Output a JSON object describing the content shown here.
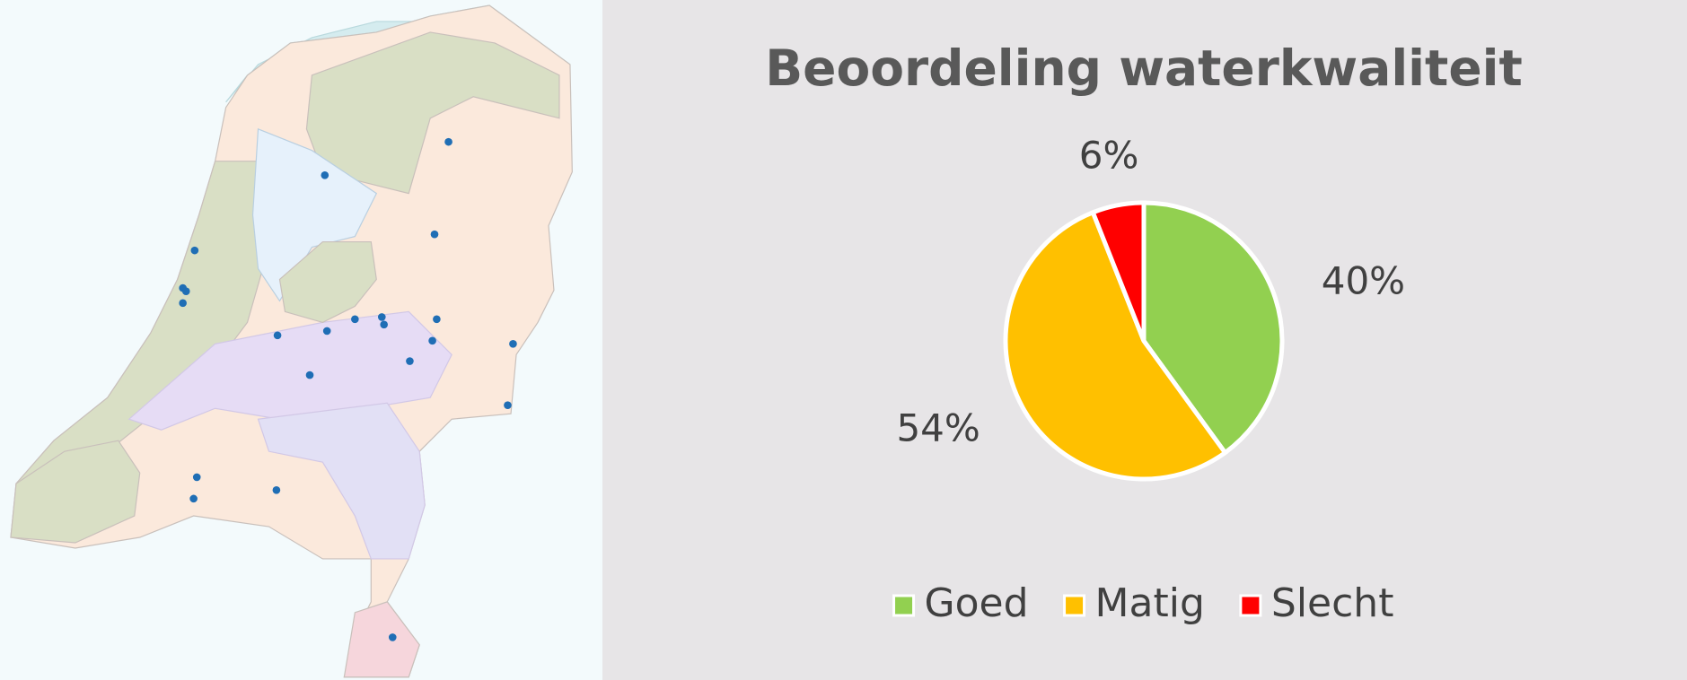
{
  "chart_data": {
    "type": "pie",
    "title": "Beoordeling waterkwaliteit",
    "categories": [
      "Goed",
      "Matig",
      "Slecht"
    ],
    "values": [
      40,
      54,
      6
    ],
    "value_labels": [
      "40%",
      "54%",
      "6%"
    ],
    "colors": [
      "#92d050",
      "#ffc000",
      "#ff0000"
    ],
    "legend": "bottom"
  }
}
